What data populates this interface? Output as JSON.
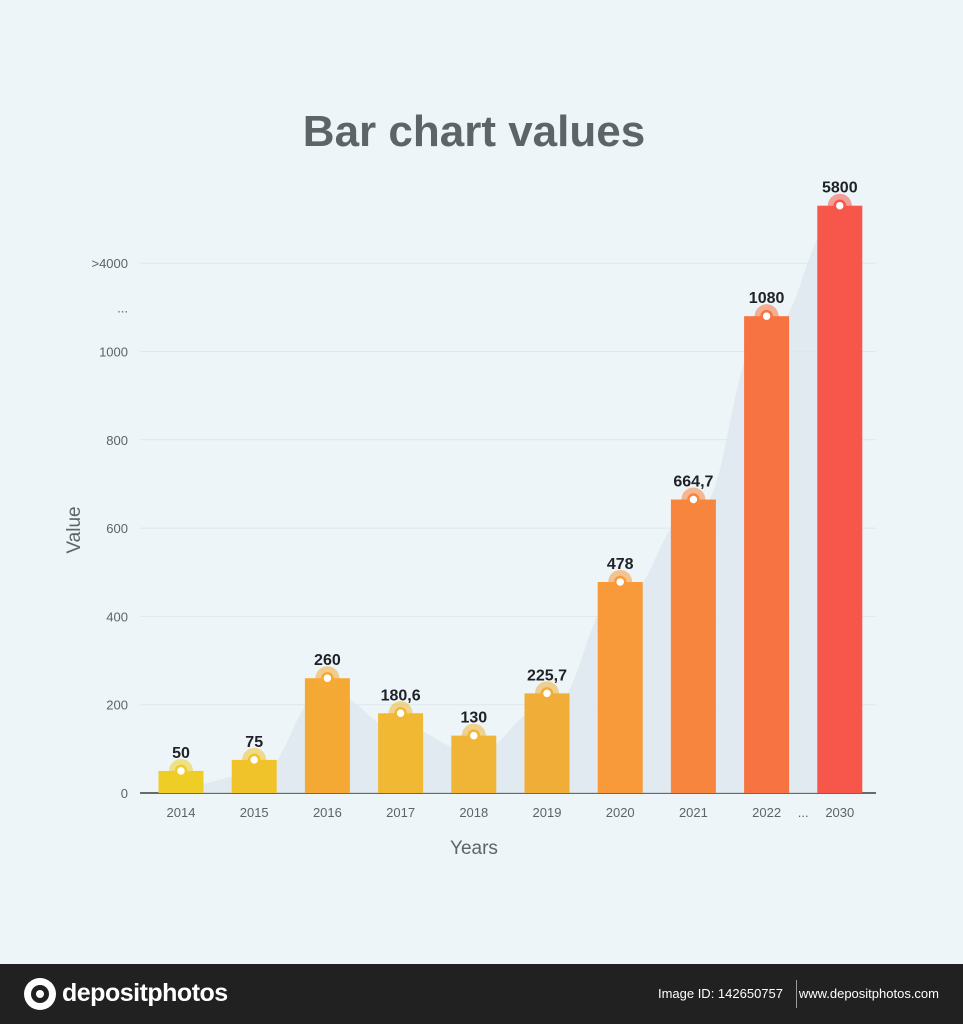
{
  "chart_data": {
    "type": "bar",
    "title": "Bar chart values",
    "xlabel": "Years",
    "ylabel": "Value",
    "categories": [
      "2014",
      "2015",
      "2016",
      "2017",
      "2018",
      "2019",
      "2020",
      "2021",
      "2022",
      "2030"
    ],
    "values": [
      50,
      75,
      260,
      180.6,
      130,
      225.7,
      478,
      664.7,
      1080,
      5800
    ],
    "value_labels": [
      "50",
      "75",
      "260",
      "180,6",
      "130",
      "225,7",
      "478",
      "664,7",
      "1080",
      "5800"
    ],
    "y_ticks": [
      "0",
      "200",
      "400",
      "600",
      "800",
      "1000",
      "...",
      ">4000"
    ],
    "x_gap_label": "...",
    "ylim": [
      0,
      1200
    ],
    "axis_break": "values above 1000 compressed; '...' and '>4000' tick labels",
    "grid": true,
    "legend": "none",
    "colors": [
      "#efcd27",
      "#f0c32b",
      "#f5a935",
      "#f0b833",
      "#f0b537",
      "#f0ae38",
      "#f89a3a",
      "#f8853e",
      "#f77342",
      "#f6574a"
    ],
    "trend_area_color": "#dde8ef",
    "marker_color": "#ffffff"
  },
  "footer": {
    "logo_text": "depositphotos",
    "image_id": "Image ID: 142650757",
    "site_url": "www.depositphotos.com"
  }
}
